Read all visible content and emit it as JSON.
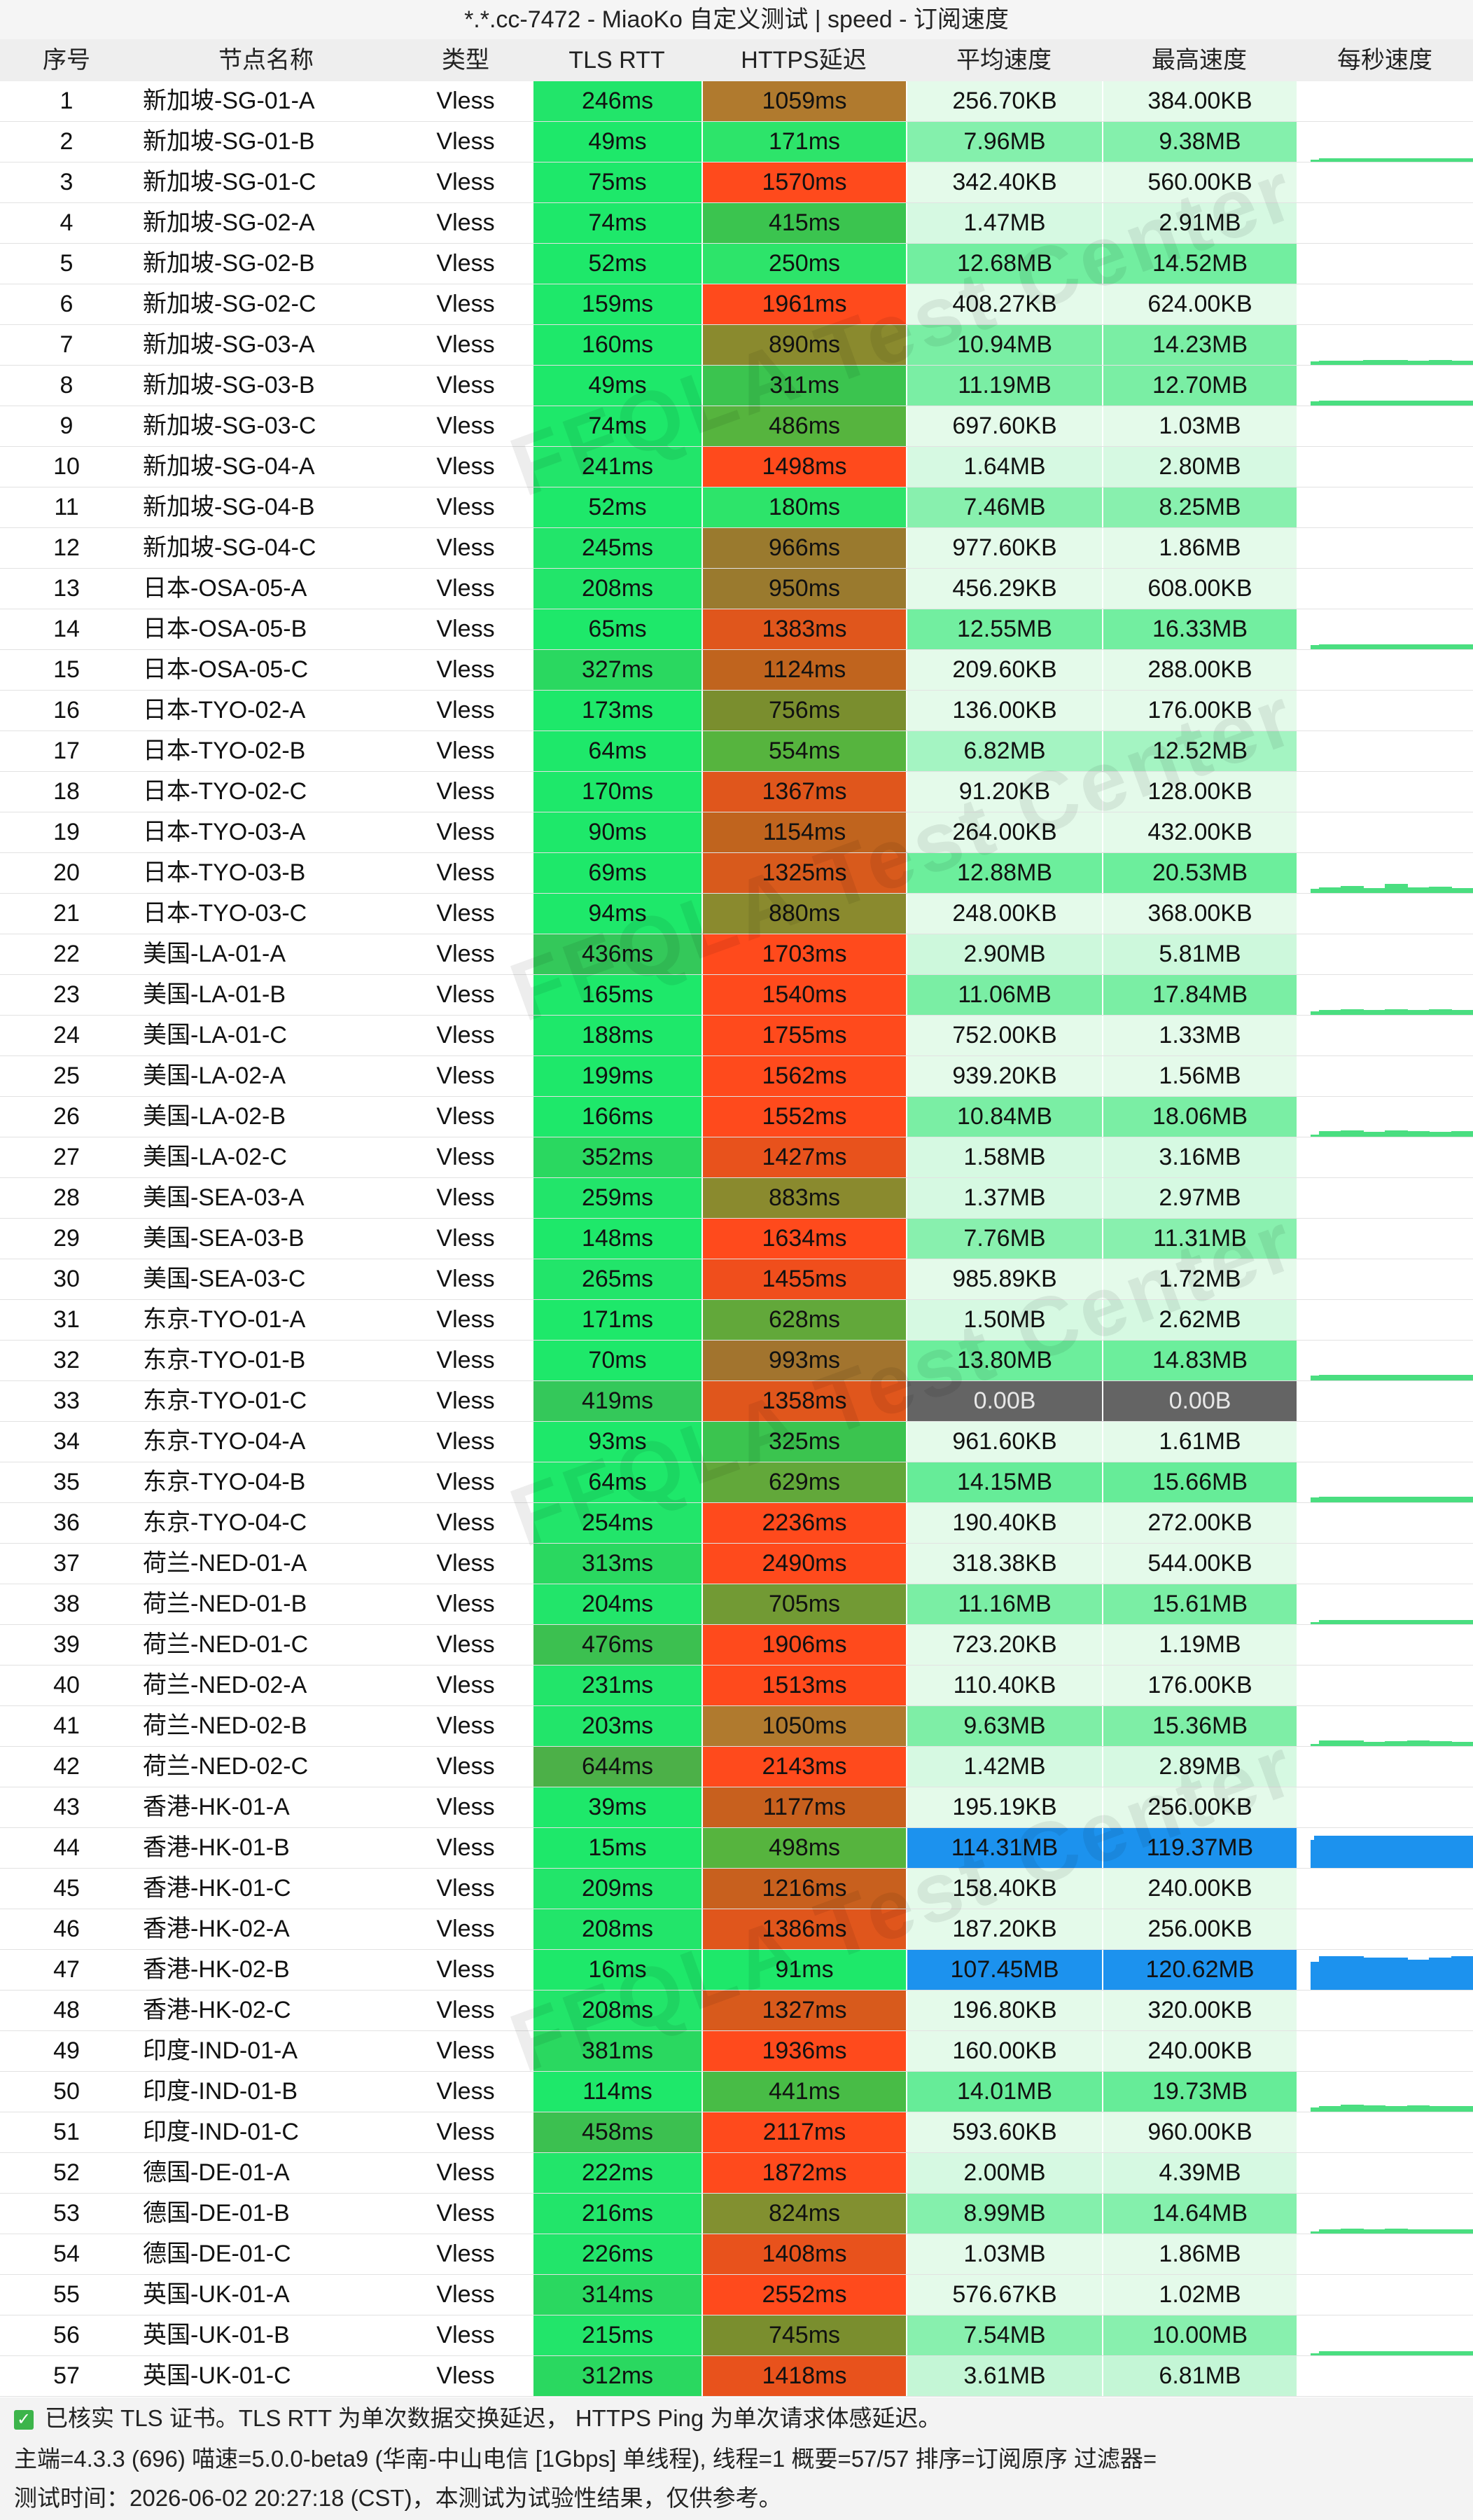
{
  "title": "*.*.cc-7472 - MiaoKo 自定义测试 | speed - 订阅速度",
  "headers": {
    "idx": "序号",
    "name": "节点名称",
    "type": "类型",
    "rtt": "TLS RTT",
    "https": "HTTPS延迟",
    "avg": "平均速度",
    "max": "最高速度",
    "spark": "每秒速度"
  },
  "watermark": "FFQLA Test Center",
  "rows": [
    {
      "idx": "1",
      "name": "新加坡-SG-01-A",
      "type": "Vless",
      "rtt": "246ms",
      "https": "1059ms",
      "avg": "256.70KB",
      "max": "384.00KB",
      "rtt_c": "#22e56a",
      "https_c": "#b07a2e",
      "avg_c": "#e4faea",
      "max_c": "#e4faea",
      "spark": []
    },
    {
      "idx": "2",
      "name": "新加坡-SG-01-B",
      "type": "Vless",
      "rtt": "49ms",
      "https": "171ms",
      "avg": "7.96MB",
      "max": "9.38MB",
      "rtt_c": "#1ee86a",
      "https_c": "#2de46a",
      "avg_c": "#84f0ac",
      "max_c": "#84f0ac",
      "spark": [
        0.05,
        0.08,
        0.08,
        0.08,
        0.08,
        0.08,
        0.08,
        0.08
      ]
    },
    {
      "idx": "3",
      "name": "新加坡-SG-01-C",
      "type": "Vless",
      "rtt": "75ms",
      "https": "1570ms",
      "avg": "342.40KB",
      "max": "560.00KB",
      "rtt_c": "#1ee86a",
      "https_c": "#ff4a1c",
      "avg_c": "#e4faea",
      "max_c": "#e4faea",
      "spark": []
    },
    {
      "idx": "4",
      "name": "新加坡-SG-02-A",
      "type": "Vless",
      "rtt": "74ms",
      "https": "415ms",
      "avg": "1.47MB",
      "max": "2.91MB",
      "rtt_c": "#1ee86a",
      "https_c": "#3bc44f",
      "avg_c": "#d6f9e2",
      "max_c": "#d6f9e2",
      "spark": []
    },
    {
      "idx": "5",
      "name": "新加坡-SG-02-B",
      "type": "Vless",
      "rtt": "52ms",
      "https": "250ms",
      "avg": "12.68MB",
      "max": "14.52MB",
      "rtt_c": "#1ee86a",
      "https_c": "#2de46a",
      "avg_c": "#72eea0",
      "max_c": "#72eea0",
      "spark": []
    },
    {
      "idx": "6",
      "name": "新加坡-SG-02-C",
      "type": "Vless",
      "rtt": "159ms",
      "https": "1961ms",
      "avg": "408.27KB",
      "max": "624.00KB",
      "rtt_c": "#1ee86a",
      "https_c": "#ff4a1c",
      "avg_c": "#e4faea",
      "max_c": "#e4faea",
      "spark": []
    },
    {
      "idx": "7",
      "name": "新加坡-SG-03-A",
      "type": "Vless",
      "rtt": "160ms",
      "https": "890ms",
      "avg": "10.94MB",
      "max": "14.23MB",
      "rtt_c": "#1ee86a",
      "https_c": "#8a8a2e",
      "avg_c": "#7aeea4",
      "max_c": "#7aeea4",
      "spark": [
        0.08,
        0.1,
        0.1,
        0.12,
        0.12,
        0.1,
        0.12,
        0.1
      ]
    },
    {
      "idx": "8",
      "name": "新加坡-SG-03-B",
      "type": "Vless",
      "rtt": "49ms",
      "https": "311ms",
      "avg": "11.19MB",
      "max": "12.70MB",
      "rtt_c": "#1ee86a",
      "https_c": "#3bc44f",
      "avg_c": "#7aeea4",
      "max_c": "#7aeea4",
      "spark": [
        0.1,
        0.12,
        0.12,
        0.12,
        0.12,
        0.12,
        0.12,
        0.12
      ]
    },
    {
      "idx": "9",
      "name": "新加坡-SG-03-C",
      "type": "Vless",
      "rtt": "74ms",
      "https": "486ms",
      "avg": "697.60KB",
      "max": "1.03MB",
      "rtt_c": "#1ee86a",
      "https_c": "#56b43e",
      "avg_c": "#e4faea",
      "max_c": "#e4faea",
      "spark": []
    },
    {
      "idx": "10",
      "name": "新加坡-SG-04-A",
      "type": "Vless",
      "rtt": "241ms",
      "https": "1498ms",
      "avg": "1.64MB",
      "max": "2.80MB",
      "rtt_c": "#22e56a",
      "https_c": "#ff4a1c",
      "avg_c": "#d6f9e2",
      "max_c": "#d6f9e2",
      "spark": []
    },
    {
      "idx": "11",
      "name": "新加坡-SG-04-B",
      "type": "Vless",
      "rtt": "52ms",
      "https": "180ms",
      "avg": "7.46MB",
      "max": "8.25MB",
      "rtt_c": "#1ee86a",
      "https_c": "#2de46a",
      "avg_c": "#88f0ae",
      "max_c": "#88f0ae",
      "spark": []
    },
    {
      "idx": "12",
      "name": "新加坡-SG-04-C",
      "type": "Vless",
      "rtt": "245ms",
      "https": "966ms",
      "avg": "977.60KB",
      "max": "1.86MB",
      "rtt_c": "#22e56a",
      "https_c": "#9a7a2e",
      "avg_c": "#e4faea",
      "max_c": "#e4faea",
      "spark": []
    },
    {
      "idx": "13",
      "name": "日本-OSA-05-A",
      "type": "Vless",
      "rtt": "208ms",
      "https": "950ms",
      "avg": "456.29KB",
      "max": "608.00KB",
      "rtt_c": "#22e56a",
      "https_c": "#9a7a2e",
      "avg_c": "#e4faea",
      "max_c": "#e4faea",
      "spark": []
    },
    {
      "idx": "14",
      "name": "日本-OSA-05-B",
      "type": "Vless",
      "rtt": "65ms",
      "https": "1383ms",
      "avg": "12.55MB",
      "max": "16.33MB",
      "rtt_c": "#1ee86a",
      "https_c": "#e0561c",
      "avg_c": "#72eea0",
      "max_c": "#72eea0",
      "spark": [
        0.1,
        0.12,
        0.12,
        0.12,
        0.12,
        0.12,
        0.12,
        0.12
      ]
    },
    {
      "idx": "15",
      "name": "日本-OSA-05-C",
      "type": "Vless",
      "rtt": "327ms",
      "https": "1124ms",
      "avg": "209.60KB",
      "max": "288.00KB",
      "rtt_c": "#2ad860",
      "https_c": "#c0641e",
      "avg_c": "#e4faea",
      "max_c": "#e4faea",
      "spark": []
    },
    {
      "idx": "16",
      "name": "日本-TYO-02-A",
      "type": "Vless",
      "rtt": "173ms",
      "https": "756ms",
      "avg": "136.00KB",
      "max": "176.00KB",
      "rtt_c": "#1ee86a",
      "https_c": "#7a8e2e",
      "avg_c": "#e4faea",
      "max_c": "#e4faea",
      "spark": []
    },
    {
      "idx": "17",
      "name": "日本-TYO-02-B",
      "type": "Vless",
      "rtt": "64ms",
      "https": "554ms",
      "avg": "6.82MB",
      "max": "12.52MB",
      "rtt_c": "#1ee86a",
      "https_c": "#56b43e",
      "avg_c": "#a4f4c2",
      "max_c": "#a4f4c2",
      "spark": []
    },
    {
      "idx": "18",
      "name": "日本-TYO-02-C",
      "type": "Vless",
      "rtt": "170ms",
      "https": "1367ms",
      "avg": "91.20KB",
      "max": "128.00KB",
      "rtt_c": "#1ee86a",
      "https_c": "#e0561c",
      "avg_c": "#e4faea",
      "max_c": "#e4faea",
      "spark": []
    },
    {
      "idx": "19",
      "name": "日本-TYO-03-A",
      "type": "Vless",
      "rtt": "90ms",
      "https": "1154ms",
      "avg": "264.00KB",
      "max": "432.00KB",
      "rtt_c": "#1ee86a",
      "https_c": "#c0641e",
      "avg_c": "#e4faea",
      "max_c": "#e4faea",
      "spark": []
    },
    {
      "idx": "20",
      "name": "日本-TYO-03-B",
      "type": "Vless",
      "rtt": "69ms",
      "https": "1325ms",
      "avg": "12.88MB",
      "max": "20.53MB",
      "rtt_c": "#1ee86a",
      "https_c": "#d85a1c",
      "avg_c": "#6cee9c",
      "max_c": "#6cee9c",
      "spark": [
        0.1,
        0.14,
        0.18,
        0.12,
        0.22,
        0.14,
        0.16,
        0.12
      ]
    },
    {
      "idx": "21",
      "name": "日本-TYO-03-C",
      "type": "Vless",
      "rtt": "94ms",
      "https": "880ms",
      "avg": "248.00KB",
      "max": "368.00KB",
      "rtt_c": "#1ee86a",
      "https_c": "#8a8a2e",
      "avg_c": "#e4faea",
      "max_c": "#e4faea",
      "spark": []
    },
    {
      "idx": "22",
      "name": "美国-LA-01-A",
      "type": "Vless",
      "rtt": "436ms",
      "https": "1703ms",
      "avg": "2.90MB",
      "max": "5.81MB",
      "rtt_c": "#34c85a",
      "https_c": "#ff4a1c",
      "avg_c": "#cdf8dc",
      "max_c": "#cdf8dc",
      "spark": []
    },
    {
      "idx": "23",
      "name": "美国-LA-01-B",
      "type": "Vless",
      "rtt": "165ms",
      "https": "1540ms",
      "avg": "11.06MB",
      "max": "17.84MB",
      "rtt_c": "#1ee86a",
      "https_c": "#ff4a1c",
      "avg_c": "#7aeea4",
      "max_c": "#7aeea4",
      "spark": [
        0.08,
        0.12,
        0.14,
        0.12,
        0.14,
        0.12,
        0.14,
        0.12
      ]
    },
    {
      "idx": "24",
      "name": "美国-LA-01-C",
      "type": "Vless",
      "rtt": "188ms",
      "https": "1755ms",
      "avg": "752.00KB",
      "max": "1.33MB",
      "rtt_c": "#1ee86a",
      "https_c": "#ff4a1c",
      "avg_c": "#e4faea",
      "max_c": "#e4faea",
      "spark": []
    },
    {
      "idx": "25",
      "name": "美国-LA-02-A",
      "type": "Vless",
      "rtt": "199ms",
      "https": "1562ms",
      "avg": "939.20KB",
      "max": "1.56MB",
      "rtt_c": "#1ee86a",
      "https_c": "#ff4a1c",
      "avg_c": "#e4faea",
      "max_c": "#e4faea",
      "spark": []
    },
    {
      "idx": "26",
      "name": "美国-LA-02-B",
      "type": "Vless",
      "rtt": "166ms",
      "https": "1552ms",
      "avg": "10.84MB",
      "max": "18.06MB",
      "rtt_c": "#1ee86a",
      "https_c": "#ff4a1c",
      "avg_c": "#7aeea4",
      "max_c": "#7aeea4",
      "spark": [
        0.06,
        0.14,
        0.16,
        0.12,
        0.16,
        0.14,
        0.12,
        0.14
      ]
    },
    {
      "idx": "27",
      "name": "美国-LA-02-C",
      "type": "Vless",
      "rtt": "352ms",
      "https": "1427ms",
      "avg": "1.58MB",
      "max": "3.16MB",
      "rtt_c": "#2ad860",
      "https_c": "#e8521c",
      "avg_c": "#d6f9e2",
      "max_c": "#d6f9e2",
      "spark": []
    },
    {
      "idx": "28",
      "name": "美国-SEA-03-A",
      "type": "Vless",
      "rtt": "259ms",
      "https": "883ms",
      "avg": "1.37MB",
      "max": "2.97MB",
      "rtt_c": "#22e56a",
      "https_c": "#8a8a2e",
      "avg_c": "#d6f9e2",
      "max_c": "#d6f9e2",
      "spark": []
    },
    {
      "idx": "29",
      "name": "美国-SEA-03-B",
      "type": "Vless",
      "rtt": "148ms",
      "https": "1634ms",
      "avg": "7.76MB",
      "max": "11.31MB",
      "rtt_c": "#1ee86a",
      "https_c": "#ff4a1c",
      "avg_c": "#88f0ae",
      "max_c": "#88f0ae",
      "spark": []
    },
    {
      "idx": "30",
      "name": "美国-SEA-03-C",
      "type": "Vless",
      "rtt": "265ms",
      "https": "1455ms",
      "avg": "985.89KB",
      "max": "1.72MB",
      "rtt_c": "#22e56a",
      "https_c": "#f04e1c",
      "avg_c": "#e4faea",
      "max_c": "#e4faea",
      "spark": []
    },
    {
      "idx": "31",
      "name": "东京-TYO-01-A",
      "type": "Vless",
      "rtt": "171ms",
      "https": "628ms",
      "avg": "1.50MB",
      "max": "2.62MB",
      "rtt_c": "#1ee86a",
      "https_c": "#62a83a",
      "avg_c": "#d6f9e2",
      "max_c": "#d6f9e2",
      "spark": []
    },
    {
      "idx": "32",
      "name": "东京-TYO-01-B",
      "type": "Vless",
      "rtt": "70ms",
      "https": "993ms",
      "avg": "13.80MB",
      "max": "14.83MB",
      "rtt_c": "#1ee86a",
      "https_c": "#a2742e",
      "avg_c": "#6cee9c",
      "max_c": "#6cee9c",
      "spark": [
        0.12,
        0.14,
        0.14,
        0.14,
        0.14,
        0.14,
        0.14,
        0.14
      ]
    },
    {
      "idx": "33",
      "name": "东京-TYO-01-C",
      "type": "Vless",
      "rtt": "419ms",
      "https": "1358ms",
      "avg": "0.00B",
      "max": "0.00B",
      "rtt_c": "#34c85a",
      "https_c": "#e0561c",
      "avg_c": "#646464",
      "max_c": "#646464",
      "spark": []
    },
    {
      "idx": "34",
      "name": "东京-TYO-04-A",
      "type": "Vless",
      "rtt": "93ms",
      "https": "325ms",
      "avg": "961.60KB",
      "max": "1.61MB",
      "rtt_c": "#1ee86a",
      "https_c": "#3bc44f",
      "avg_c": "#e4faea",
      "max_c": "#e4faea",
      "spark": []
    },
    {
      "idx": "35",
      "name": "东京-TYO-04-B",
      "type": "Vless",
      "rtt": "64ms",
      "https": "629ms",
      "avg": "14.15MB",
      "max": "15.66MB",
      "rtt_c": "#1ee86a",
      "https_c": "#62a83a",
      "avg_c": "#66ec98",
      "max_c": "#66ec98",
      "spark": [
        0.12,
        0.14,
        0.14,
        0.14,
        0.14,
        0.14,
        0.14,
        0.14
      ]
    },
    {
      "idx": "36",
      "name": "东京-TYO-04-C",
      "type": "Vless",
      "rtt": "254ms",
      "https": "2236ms",
      "avg": "190.40KB",
      "max": "272.00KB",
      "rtt_c": "#22e56a",
      "https_c": "#ff4a1c",
      "avg_c": "#e4faea",
      "max_c": "#e4faea",
      "spark": []
    },
    {
      "idx": "37",
      "name": "荷兰-NED-01-A",
      "type": "Vless",
      "rtt": "313ms",
      "https": "2490ms",
      "avg": "318.38KB",
      "max": "544.00KB",
      "rtt_c": "#2ad860",
      "https_c": "#ff4a1c",
      "avg_c": "#e4faea",
      "max_c": "#e4faea",
      "spark": []
    },
    {
      "idx": "38",
      "name": "荷兰-NED-01-B",
      "type": "Vless",
      "rtt": "204ms",
      "https": "705ms",
      "avg": "11.16MB",
      "max": "15.61MB",
      "rtt_c": "#22e56a",
      "https_c": "#729a34",
      "avg_c": "#7aeea4",
      "max_c": "#7aeea4",
      "spark": [
        0.06,
        0.1,
        0.1,
        0.1,
        0.1,
        0.1,
        0.1,
        0.1
      ]
    },
    {
      "idx": "39",
      "name": "荷兰-NED-01-C",
      "type": "Vless",
      "rtt": "476ms",
      "https": "1906ms",
      "avg": "723.20KB",
      "max": "1.19MB",
      "rtt_c": "#3cc050",
      "https_c": "#ff4a1c",
      "avg_c": "#e4faea",
      "max_c": "#e4faea",
      "spark": []
    },
    {
      "idx": "40",
      "name": "荷兰-NED-02-A",
      "type": "Vless",
      "rtt": "231ms",
      "https": "1513ms",
      "avg": "110.40KB",
      "max": "176.00KB",
      "rtt_c": "#22e56a",
      "https_c": "#ff4a1c",
      "avg_c": "#e4faea",
      "max_c": "#e4faea",
      "spark": []
    },
    {
      "idx": "41",
      "name": "荷兰-NED-02-B",
      "type": "Vless",
      "rtt": "203ms",
      "https": "1050ms",
      "avg": "9.63MB",
      "max": "15.36MB",
      "rtt_c": "#22e56a",
      "https_c": "#b07a2e",
      "avg_c": "#7eeea6",
      "max_c": "#7eeea6",
      "spark": [
        0.06,
        0.14,
        0.14,
        0.1,
        0.12,
        0.14,
        0.12,
        0.1
      ]
    },
    {
      "idx": "42",
      "name": "荷兰-NED-02-C",
      "type": "Vless",
      "rtt": "644ms",
      "https": "2143ms",
      "avg": "1.42MB",
      "max": "2.89MB",
      "rtt_c": "#4cb048",
      "https_c": "#ff4a1c",
      "avg_c": "#d6f9e2",
      "max_c": "#d6f9e2",
      "spark": []
    },
    {
      "idx": "43",
      "name": "香港-HK-01-A",
      "type": "Vless",
      "rtt": "39ms",
      "https": "1177ms",
      "avg": "195.19KB",
      "max": "256.00KB",
      "rtt_c": "#1ee86a",
      "https_c": "#c8601e",
      "avg_c": "#e4faea",
      "max_c": "#e4faea",
      "spark": []
    },
    {
      "idx": "44",
      "name": "香港-HK-01-B",
      "type": "Vless",
      "rtt": "15ms",
      "https": "498ms",
      "avg": "114.31MB",
      "max": "119.37MB",
      "rtt_c": "#1ee86a",
      "https_c": "#56b43e",
      "avg_c": "#1c92ee",
      "max_c": "#1c92ee",
      "spark": [
        0.7,
        0.8,
        0.8,
        0.8,
        0.8,
        0.8,
        0.8,
        0.8,
        0.8,
        0.8
      ]
    },
    {
      "idx": "45",
      "name": "香港-HK-01-C",
      "type": "Vless",
      "rtt": "209ms",
      "https": "1216ms",
      "avg": "158.40KB",
      "max": "240.00KB",
      "rtt_c": "#22e56a",
      "https_c": "#c8601e",
      "avg_c": "#e4faea",
      "max_c": "#e4faea",
      "spark": []
    },
    {
      "idx": "46",
      "name": "香港-HK-02-A",
      "type": "Vless",
      "rtt": "208ms",
      "https": "1386ms",
      "avg": "187.20KB",
      "max": "256.00KB",
      "rtt_c": "#22e56a",
      "https_c": "#e0561c",
      "avg_c": "#e4faea",
      "max_c": "#e4faea",
      "spark": []
    },
    {
      "idx": "47",
      "name": "香港-HK-02-B",
      "type": "Vless",
      "rtt": "16ms",
      "https": "91ms",
      "avg": "107.45MB",
      "max": "120.62MB",
      "rtt_c": "#1ee86a",
      "https_c": "#1ee86a",
      "avg_c": "#1c92ee",
      "max_c": "#1c92ee",
      "spark": [
        0.7,
        0.85,
        0.85,
        0.8,
        0.8,
        0.75,
        0.8,
        0.85
      ]
    },
    {
      "idx": "48",
      "name": "香港-HK-02-C",
      "type": "Vless",
      "rtt": "208ms",
      "https": "1327ms",
      "avg": "196.80KB",
      "max": "320.00KB",
      "rtt_c": "#22e56a",
      "https_c": "#d85a1c",
      "avg_c": "#e4faea",
      "max_c": "#e4faea",
      "spark": []
    },
    {
      "idx": "49",
      "name": "印度-IND-01-A",
      "type": "Vless",
      "rtt": "381ms",
      "https": "1936ms",
      "avg": "160.00KB",
      "max": "240.00KB",
      "rtt_c": "#2ad860",
      "https_c": "#ff4a1c",
      "avg_c": "#e4faea",
      "max_c": "#e4faea",
      "spark": []
    },
    {
      "idx": "50",
      "name": "印度-IND-01-B",
      "type": "Vless",
      "rtt": "114ms",
      "https": "441ms",
      "avg": "14.01MB",
      "max": "19.73MB",
      "rtt_c": "#1ee86a",
      "https_c": "#48bc46",
      "avg_c": "#66ec98",
      "max_c": "#66ec98",
      "spark": [
        0.1,
        0.14,
        0.18,
        0.16,
        0.14,
        0.16,
        0.14,
        0.14
      ]
    },
    {
      "idx": "51",
      "name": "印度-IND-01-C",
      "type": "Vless",
      "rtt": "458ms",
      "https": "2117ms",
      "avg": "593.60KB",
      "max": "960.00KB",
      "rtt_c": "#3cc050",
      "https_c": "#ff4a1c",
      "avg_c": "#e4faea",
      "max_c": "#e4faea",
      "spark": []
    },
    {
      "idx": "52",
      "name": "德国-DE-01-A",
      "type": "Vless",
      "rtt": "222ms",
      "https": "1872ms",
      "avg": "2.00MB",
      "max": "4.39MB",
      "rtt_c": "#22e56a",
      "https_c": "#ff4a1c",
      "avg_c": "#d6f9e2",
      "max_c": "#d6f9e2",
      "spark": []
    },
    {
      "idx": "53",
      "name": "德国-DE-01-B",
      "type": "Vless",
      "rtt": "216ms",
      "https": "824ms",
      "avg": "8.99MB",
      "max": "14.64MB",
      "rtt_c": "#22e56a",
      "https_c": "#829030",
      "avg_c": "#84f0ac",
      "max_c": "#84f0ac",
      "spark": [
        0.06,
        0.1,
        0.12,
        0.1,
        0.12,
        0.1,
        0.1,
        0.1
      ]
    },
    {
      "idx": "54",
      "name": "德国-DE-01-C",
      "type": "Vless",
      "rtt": "226ms",
      "https": "1408ms",
      "avg": "1.03MB",
      "max": "1.86MB",
      "rtt_c": "#22e56a",
      "https_c": "#e8521c",
      "avg_c": "#e4faea",
      "max_c": "#e4faea",
      "spark": []
    },
    {
      "idx": "55",
      "name": "英国-UK-01-A",
      "type": "Vless",
      "rtt": "314ms",
      "https": "2552ms",
      "avg": "576.67KB",
      "max": "1.02MB",
      "rtt_c": "#2ad860",
      "https_c": "#ff4a1c",
      "avg_c": "#e4faea",
      "max_c": "#e4faea",
      "spark": []
    },
    {
      "idx": "56",
      "name": "英国-UK-01-B",
      "type": "Vless",
      "rtt": "215ms",
      "https": "745ms",
      "avg": "7.54MB",
      "max": "10.00MB",
      "rtt_c": "#22e56a",
      "https_c": "#7a8e2e",
      "avg_c": "#88f0ae",
      "max_c": "#88f0ae",
      "spark": [
        0.06,
        0.1,
        0.1,
        0.1,
        0.1,
        0.1,
        0.1,
        0.1
      ]
    },
    {
      "idx": "57",
      "name": "英国-UK-01-C",
      "type": "Vless",
      "rtt": "312ms",
      "https": "1418ms",
      "avg": "3.61MB",
      "max": "6.81MB",
      "rtt_c": "#2ad860",
      "https_c": "#e8521c",
      "avg_c": "#c4f6d6",
      "max_c": "#c4f6d6",
      "spark": []
    }
  ],
  "footer": {
    "line1": "已核实 TLS 证书。TLS RTT 为单次数据交换延迟， HTTPS Ping 为单次请求体感延迟。",
    "line2": "主端=4.3.3 (696) 喵速=5.0.0-beta9 (华南-中山电信 [1Gbps] 单线程), 线程=1 概要=57/57 排序=订阅原序 过滤器=",
    "line3": "测试时间：2026-06-02 20:27:18 (CST)，本测试为试验性结果，仅供参考。"
  },
  "colors": {
    "spark_green": "#4ade80",
    "spark_blue": "#1c92ee",
    "check_green": "#3cb44a"
  }
}
